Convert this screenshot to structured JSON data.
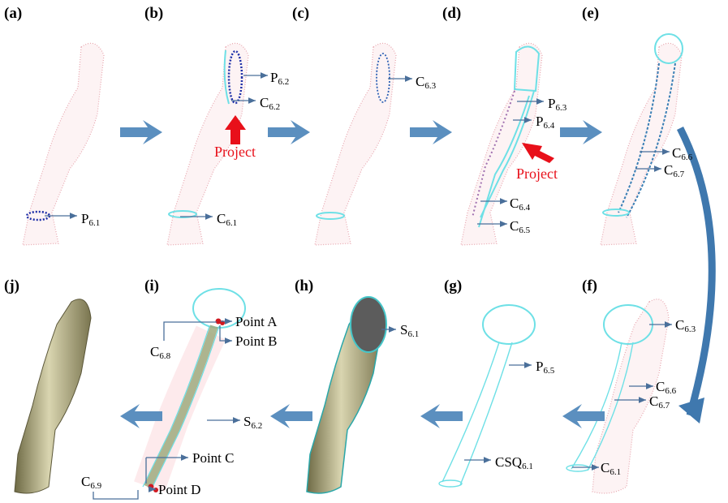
{
  "panels": [
    {
      "label": "(a)",
      "annotations": [
        {
          "text": "P",
          "sub": "6.1"
        }
      ]
    },
    {
      "label": "(b)",
      "annotations": [
        {
          "text": "P",
          "sub": "6.2"
        },
        {
          "text": "C",
          "sub": "6.2"
        },
        {
          "text": "Project"
        },
        {
          "text": "C",
          "sub": "6.1"
        }
      ]
    },
    {
      "label": "(c)",
      "annotations": [
        {
          "text": "C",
          "sub": "6.3"
        }
      ]
    },
    {
      "label": "(d)",
      "annotations": [
        {
          "text": "P",
          "sub": "6.3"
        },
        {
          "text": "P",
          "sub": "6.4"
        },
        {
          "text": "Project"
        },
        {
          "text": "C",
          "sub": "6.4"
        },
        {
          "text": "C",
          "sub": "6.5"
        }
      ]
    },
    {
      "label": "(e)",
      "annotations": [
        {
          "text": "C",
          "sub": "6.6"
        },
        {
          "text": "C",
          "sub": "6.7"
        }
      ]
    },
    {
      "label": "(j)",
      "annotations": []
    },
    {
      "label": "(i)",
      "annotations": [
        {
          "text": "C",
          "sub": "6.8"
        },
        {
          "text": "Point A"
        },
        {
          "text": "Point B"
        },
        {
          "text": "S",
          "sub": "6.2"
        },
        {
          "text": "Point C"
        },
        {
          "text": "C",
          "sub": "6.9"
        },
        {
          "text": "Point D"
        }
      ]
    },
    {
      "label": "(h)",
      "annotations": [
        {
          "text": "S",
          "sub": "6.1"
        }
      ]
    },
    {
      "label": "(g)",
      "annotations": [
        {
          "text": "P",
          "sub": "6.5"
        },
        {
          "text": "CSQ",
          "sub": "6.1"
        }
      ]
    },
    {
      "label": "(f)",
      "annotations": [
        {
          "text": "C",
          "sub": "6.3"
        },
        {
          "text": "C",
          "sub": "6.6"
        },
        {
          "text": "C",
          "sub": "6.7"
        },
        {
          "text": "C",
          "sub": "6.1"
        }
      ]
    }
  ]
}
